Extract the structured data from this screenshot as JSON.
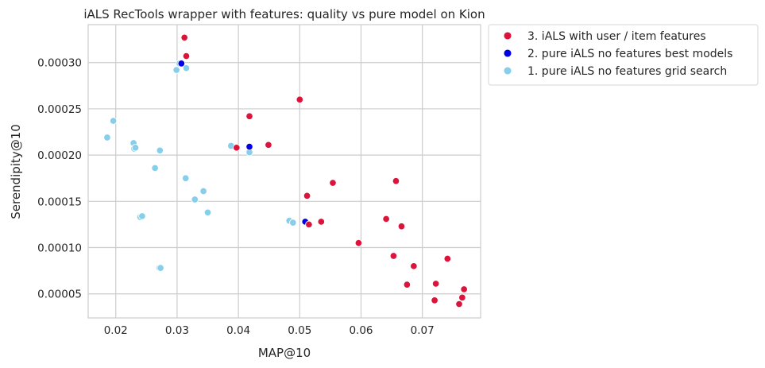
{
  "chart_data": {
    "type": "scatter",
    "title": "iALS RecTools wrapper with features: quality vs pure model on Kion",
    "xlabel": "MAP@10",
    "ylabel": "Serendipity@10",
    "xlim": [
      0.0155,
      0.0795
    ],
    "ylim": [
      2.4e-05,
      0.000341
    ],
    "xticks": [
      0.02,
      0.03,
      0.04,
      0.05,
      0.06,
      0.07
    ],
    "xtick_labels": [
      "0.02",
      "0.03",
      "0.04",
      "0.05",
      "0.06",
      "0.07"
    ],
    "yticks": [
      5e-05,
      0.0001,
      0.00015,
      0.0002,
      0.00025,
      0.0003
    ],
    "ytick_labels": [
      "0.00005",
      "0.00010",
      "0.00015",
      "0.00020",
      "0.00025",
      "0.00030"
    ],
    "grid": true,
    "legend_position": "outside-top-right",
    "series": [
      {
        "name": "3. iALS with user / item features",
        "color": "#dc143c",
        "points": [
          [
            0.0312,
            0.000327
          ],
          [
            0.0315,
            0.000307
          ],
          [
            0.0397,
            0.000208
          ],
          [
            0.0418,
            0.000242
          ],
          [
            0.0449,
            0.000211
          ],
          [
            0.05,
            0.00026
          ],
          [
            0.0512,
            0.000156
          ],
          [
            0.0515,
            0.000125
          ],
          [
            0.0535,
            0.000128
          ],
          [
            0.0554,
            0.00017
          ],
          [
            0.0596,
            0.000105
          ],
          [
            0.0641,
            0.000131
          ],
          [
            0.0653,
            9.1e-05
          ],
          [
            0.0657,
            0.000172
          ],
          [
            0.0666,
            0.000123
          ],
          [
            0.0675,
            6e-05
          ],
          [
            0.0686,
            8e-05
          ],
          [
            0.072,
            4.3e-05
          ],
          [
            0.0722,
            6.1e-05
          ],
          [
            0.0741,
            8.8e-05
          ],
          [
            0.076,
            3.9e-05
          ],
          [
            0.0765,
            4.6e-05
          ],
          [
            0.0768,
            5.5e-05
          ]
        ]
      },
      {
        "name": "2. pure iALS no features best models",
        "color": "#0000e6",
        "points": [
          [
            0.0307,
            0.000299
          ],
          [
            0.0418,
            0.000209
          ],
          [
            0.0509,
            0.000128
          ]
        ]
      },
      {
        "name": "1. pure iALS no features grid search",
        "color": "#87ceeb",
        "points": [
          [
            0.0186,
            0.000219
          ],
          [
            0.0196,
            0.000237
          ],
          [
            0.0229,
            0.000213
          ],
          [
            0.023,
            0.000207
          ],
          [
            0.0232,
            0.000208
          ],
          [
            0.024,
            0.000133
          ],
          [
            0.0243,
            0.000134
          ],
          [
            0.0264,
            0.000186
          ],
          [
            0.0271,
            7.8e-05
          ],
          [
            0.0272,
            0.000205
          ],
          [
            0.0273,
            7.8e-05
          ],
          [
            0.0299,
            0.000292
          ],
          [
            0.0304,
            0.000299
          ],
          [
            0.0314,
            0.000175
          ],
          [
            0.0315,
            0.000294
          ],
          [
            0.0329,
            0.000152
          ],
          [
            0.0343,
            0.000161
          ],
          [
            0.035,
            0.000138
          ],
          [
            0.0388,
            0.00021
          ],
          [
            0.0418,
            0.000203
          ],
          [
            0.0483,
            0.000129
          ],
          [
            0.0489,
            0.000127
          ]
        ]
      }
    ],
    "legend_order": [
      0,
      1,
      2
    ],
    "draw_order": [
      2,
      1,
      0
    ]
  }
}
